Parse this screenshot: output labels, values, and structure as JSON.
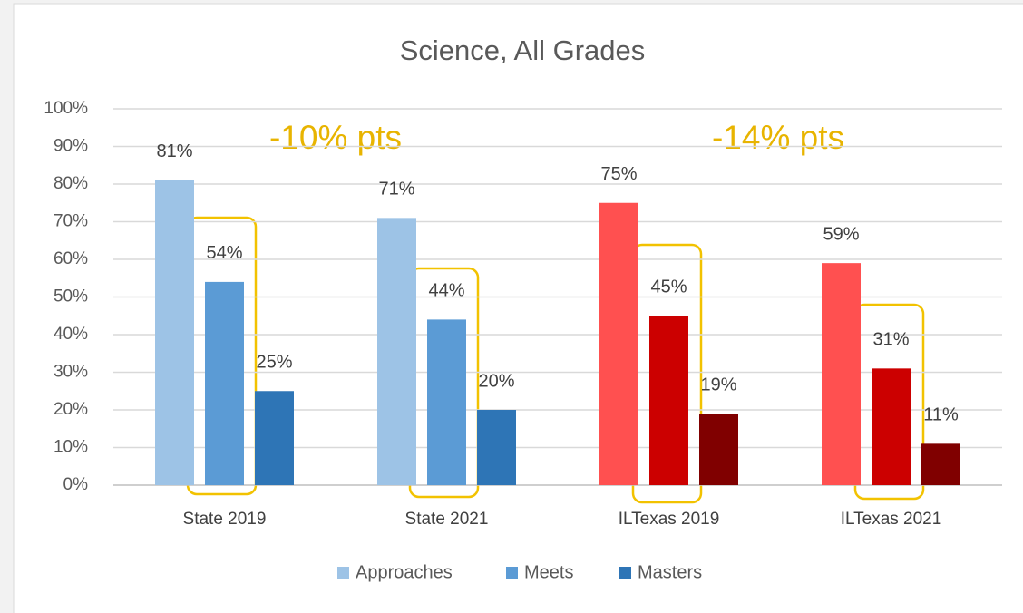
{
  "chart_data": {
    "type": "bar",
    "title": "Science, All Grades",
    "categories": [
      "State 2019",
      "State 2021",
      "ILTexas 2019",
      "ILTexas 2021"
    ],
    "series": [
      {
        "name": "Approaches",
        "color": "#9dc3e6",
        "colors": [
          "#9dc3e6",
          "#9dc3e6",
          "#ff5050",
          "#ff5050"
        ],
        "values": [
          81,
          71,
          75,
          59
        ],
        "value_labels": [
          "81%",
          "71%",
          "75%",
          "59%"
        ]
      },
      {
        "name": "Meets",
        "color": "#5b9bd5",
        "colors": [
          "#5b9bd5",
          "#5b9bd5",
          "#cc0000",
          "#cc0000"
        ],
        "values": [
          54,
          44,
          45,
          31
        ],
        "value_labels": [
          "54%",
          "44%",
          "45%",
          "31%"
        ]
      },
      {
        "name": "Masters",
        "color": "#2e75b6",
        "colors": [
          "#2e75b6",
          "#2e75b6",
          "#800000",
          "#800000"
        ],
        "values": [
          25,
          20,
          19,
          11
        ],
        "value_labels": [
          "25%",
          "20%",
          "19%",
          "11%"
        ]
      }
    ],
    "annotations": [
      "-10% pts",
      "-14% pts"
    ],
    "ylim": [
      0,
      100
    ],
    "yticks": [
      {
        "value": 0,
        "label": "0%"
      },
      {
        "value": 10,
        "label": "10%"
      },
      {
        "value": 20,
        "label": "20%"
      },
      {
        "value": 30,
        "label": "30%"
      },
      {
        "value": 40,
        "label": "40%"
      },
      {
        "value": 50,
        "label": "50%"
      },
      {
        "value": 60,
        "label": "60%"
      },
      {
        "value": 70,
        "label": "70%"
      },
      {
        "value": 80,
        "label": "80%"
      },
      {
        "value": 90,
        "label": "90%"
      },
      {
        "value": 100,
        "label": "100%"
      }
    ],
    "grid": true,
    "legend": "bottom"
  }
}
